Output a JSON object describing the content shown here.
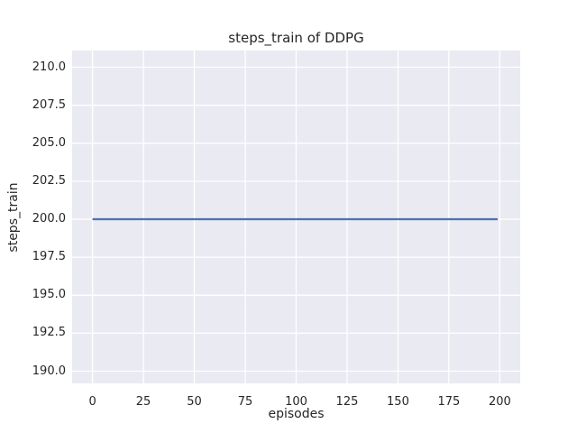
{
  "chart_data": {
    "type": "line",
    "title": "steps_train of DDPG",
    "xlabel": "episodes",
    "ylabel": "steps_train",
    "xlim": [
      -10,
      210
    ],
    "ylim": [
      189.2,
      211.1
    ],
    "xticks": [
      0,
      25,
      50,
      75,
      100,
      125,
      150,
      175,
      200
    ],
    "xtick_labels": [
      "0",
      "25",
      "50",
      "75",
      "100",
      "125",
      "150",
      "175",
      "200"
    ],
    "yticks": [
      190.0,
      192.5,
      195.0,
      197.5,
      200.0,
      202.5,
      205.0,
      207.5,
      210.0
    ],
    "ytick_labels": [
      "190.0",
      "192.5",
      "195.0",
      "197.5",
      "200.0",
      "202.5",
      "205.0",
      "207.5",
      "210.0"
    ],
    "grid": true,
    "legend": "none",
    "series": [
      {
        "name": "steps_train",
        "x": [
          0,
          199
        ],
        "y": [
          200,
          200
        ],
        "color": "#4c72b0",
        "line_width": 2.2
      }
    ],
    "style": {
      "axes_background": "#eaeaf2",
      "grid_color": "#ffffff",
      "grid_width": 1.3,
      "text_color": "#262626",
      "figure_background": "#ffffff"
    }
  }
}
